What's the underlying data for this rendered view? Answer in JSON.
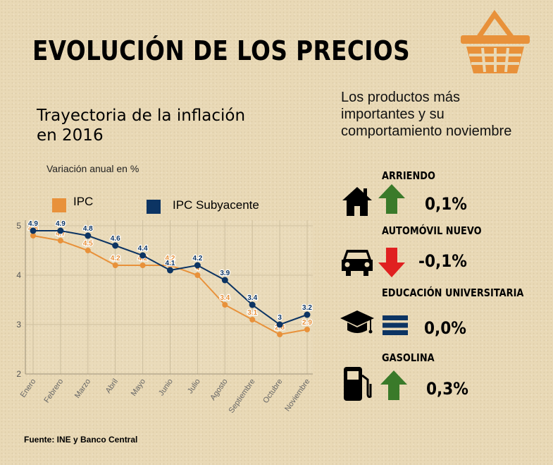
{
  "title": "EVOLUCIÓN DE LOS PRECIOS",
  "subtitle": "Trayectoria de la inflación en 2016",
  "variation_label": "Variación anual en %",
  "source": "Fuente: INE y Banco Central",
  "right_heading": "Los productos más importantes y su comportamiento noviembre",
  "colors": {
    "ipc": "#e8913a",
    "subyacente": "#0c3463",
    "up": "#3a7a2a",
    "down": "#e02020",
    "equal": "#0c3463",
    "basket": "#e8913a"
  },
  "products": [
    {
      "category": "ARRIENDO",
      "value": "0,1%",
      "trend": "up",
      "icon": "house-icon"
    },
    {
      "category": "AUTOMÓVIL NUEVO",
      "value": "-0,1%",
      "trend": "down",
      "icon": "car-icon"
    },
    {
      "category": "EDUCACIÓN UNIVERSITARIA",
      "value": "0,0%",
      "trend": "equal",
      "icon": "graduation-cap-icon"
    },
    {
      "category": "GASOLINA",
      "value": "0,3%",
      "trend": "up",
      "icon": "fuel-pump-icon"
    }
  ],
  "chart_data": {
    "type": "line",
    "categories": [
      "Enero",
      "Febrero",
      "Marzo",
      "Abril",
      "Mayo",
      "Junio",
      "Julio",
      "Agosto",
      "Septiembre",
      "Octubre",
      "Noviembre"
    ],
    "series": [
      {
        "name": "IPC",
        "values": [
          4.8,
          4.7,
          4.5,
          4.2,
          4.2,
          4.2,
          4.0,
          3.4,
          3.1,
          2.8,
          2.9
        ],
        "labels": [
          "4.8",
          "4.7",
          "4.5",
          "4.2",
          "4.2",
          "4.2",
          "4",
          "3.4",
          "3.1",
          "2.8",
          "2.9"
        ]
      },
      {
        "name": "IPC Subyacente",
        "values": [
          4.9,
          4.9,
          4.8,
          4.6,
          4.4,
          4.1,
          4.2,
          3.9,
          3.4,
          3.0,
          3.2
        ],
        "labels": [
          "4.9",
          "4.9",
          "4.8",
          "4.6",
          "4.4",
          "4.1",
          "4.2",
          "3.9",
          "3.4",
          "3",
          "3.2"
        ]
      }
    ],
    "yticks": [
      "2",
      "3",
      "4",
      "5"
    ],
    "ylim": [
      2,
      5
    ],
    "grid": true,
    "legend": "top-left"
  }
}
